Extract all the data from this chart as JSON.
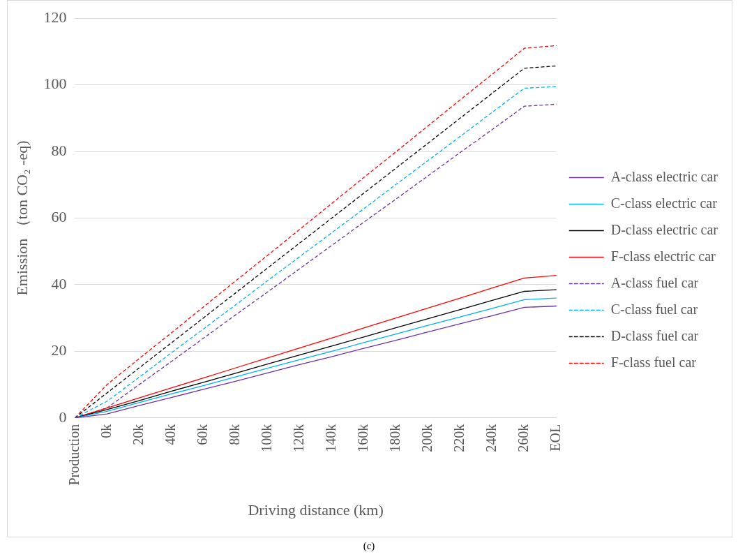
{
  "chart_data": {
    "type": "line",
    "xlabel": "Driving distance (km)",
    "ylabel": "Emission （ton CO₂ -eq)",
    "categories": [
      "Production",
      "0k",
      "20k",
      "40k",
      "60k",
      "80k",
      "100k",
      "120k",
      "140k",
      "160k",
      "180k",
      "200k",
      "220k",
      "240k",
      "260k",
      "EOL"
    ],
    "ylim": [
      0,
      120
    ],
    "yticks": [
      0,
      20,
      40,
      60,
      80,
      100,
      120
    ],
    "grid": "y",
    "legend": "right",
    "marker": "none",
    "series": [
      {
        "name": "A-class electric car",
        "color": "#7030a0",
        "line_style": "solid",
        "values": [
          0,
          1.2,
          3.7,
          6.1,
          8.6,
          11.0,
          13.5,
          16.0,
          18.4,
          20.9,
          23.3,
          25.8,
          28.3,
          30.7,
          33.2,
          33.6
        ]
      },
      {
        "name": "C-class electric car",
        "color": "#00b0f0",
        "line_style": "solid",
        "values": [
          0,
          2.0,
          4.6,
          7.2,
          9.7,
          12.3,
          14.9,
          17.5,
          20.0,
          22.6,
          25.2,
          27.8,
          30.3,
          32.9,
          35.5,
          36.0
        ]
      },
      {
        "name": "D-class electric car",
        "color": "#000000",
        "line_style": "solid",
        "values": [
          0,
          2.5,
          5.2,
          8.0,
          10.7,
          13.4,
          16.2,
          18.9,
          21.6,
          24.3,
          27.1,
          29.8,
          32.5,
          35.3,
          38.0,
          38.5
        ]
      },
      {
        "name": "F-class electric car",
        "color": "#ff0000",
        "line_style": "solid",
        "values": [
          0,
          3,
          6,
          9,
          12,
          15,
          18,
          21,
          24,
          27,
          30,
          33,
          36,
          39,
          42,
          42.8
        ]
      },
      {
        "name": "A-class fuel car",
        "color": "#7030a0",
        "line_style": "dashed",
        "values": [
          0,
          3.0,
          10.0,
          16.9,
          23.9,
          30.9,
          37.8,
          44.8,
          51.8,
          58.8,
          65.7,
          72.7,
          79.7,
          86.6,
          93.6,
          94.2
        ]
      },
      {
        "name": "C-class fuel car",
        "color": "#00b0f0",
        "line_style": "dashed",
        "values": [
          0,
          5.0,
          12.2,
          19.5,
          26.7,
          33.9,
          41.2,
          48.4,
          55.6,
          62.8,
          70.1,
          77.3,
          84.5,
          91.8,
          99.0,
          99.5
        ]
      },
      {
        "name": "D-class fuel car",
        "color": "#000000",
        "line_style": "dashed",
        "values": [
          0,
          7.5,
          15,
          22.5,
          30,
          37.5,
          45,
          52.5,
          60,
          67.5,
          75,
          82.5,
          90,
          97.5,
          105,
          105.7
        ]
      },
      {
        "name": "F-class fuel car",
        "color": "#ff0000",
        "line_style": "dashed",
        "values": [
          0,
          10.0,
          17.8,
          25.5,
          33.3,
          41.1,
          48.8,
          56.6,
          64.4,
          72.2,
          79.9,
          87.7,
          95.5,
          103.2,
          111.0,
          111.8
        ]
      }
    ],
    "annotations": [
      "(c)"
    ]
  }
}
